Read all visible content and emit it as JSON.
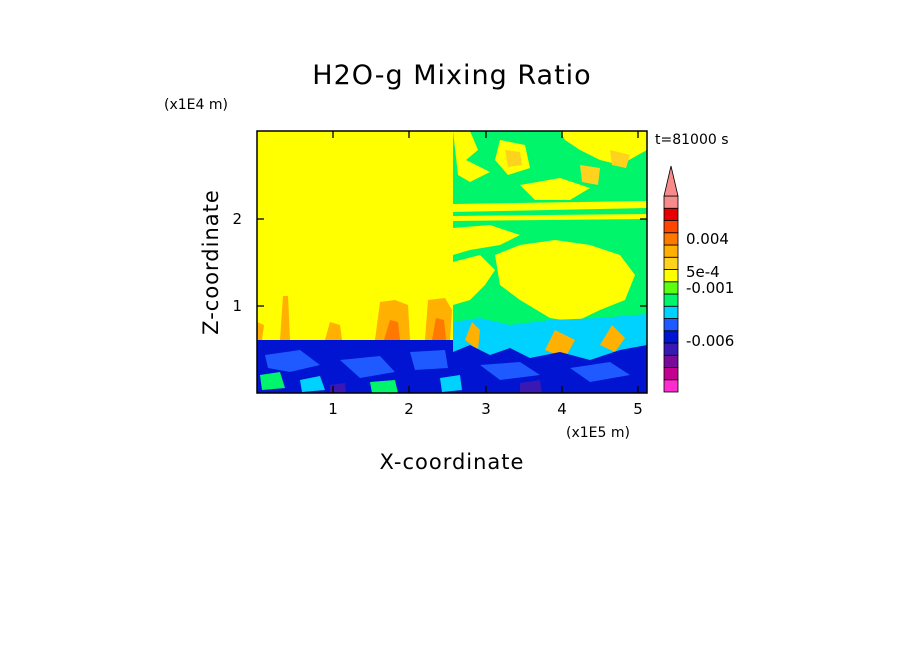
{
  "chart_data": {
    "type": "heatmap",
    "title": "H2O-g Mixing Ratio",
    "xlabel": "X-coordinate",
    "ylabel": "Z-coordinate",
    "x_scale_note": "(x1E5 m)",
    "y_scale_note": "(x1E4 m)",
    "time_label": "t=81000 s",
    "xlim": [
      0,
      5.1
    ],
    "ylim": [
      0,
      2.95
    ],
    "x_ticks": [
      "1",
      "2",
      "3",
      "4",
      "5"
    ],
    "y_ticks": [
      "1",
      "2"
    ],
    "colorbar": {
      "colors": [
        "#ff2ad0",
        "#c40090",
        "#7a0a9a",
        "#3a18b4",
        "#0014d2",
        "#1e5aff",
        "#00d2ff",
        "#00f56a",
        "#5cff10",
        "#ffff00",
        "#ffd21e",
        "#ffb000",
        "#ff7800",
        "#ff4600",
        "#e80000",
        "#f78a8a"
      ],
      "labels": [
        "0.004",
        "5e-4",
        "-0.001",
        "-0.006"
      ],
      "extend": "max"
    },
    "regions": [
      {
        "name": "upper-left",
        "color": "#ffff00"
      },
      {
        "name": "upper-right",
        "color": "#00f56a"
      },
      {
        "name": "low-level",
        "color": "#0014d2"
      }
    ]
  }
}
